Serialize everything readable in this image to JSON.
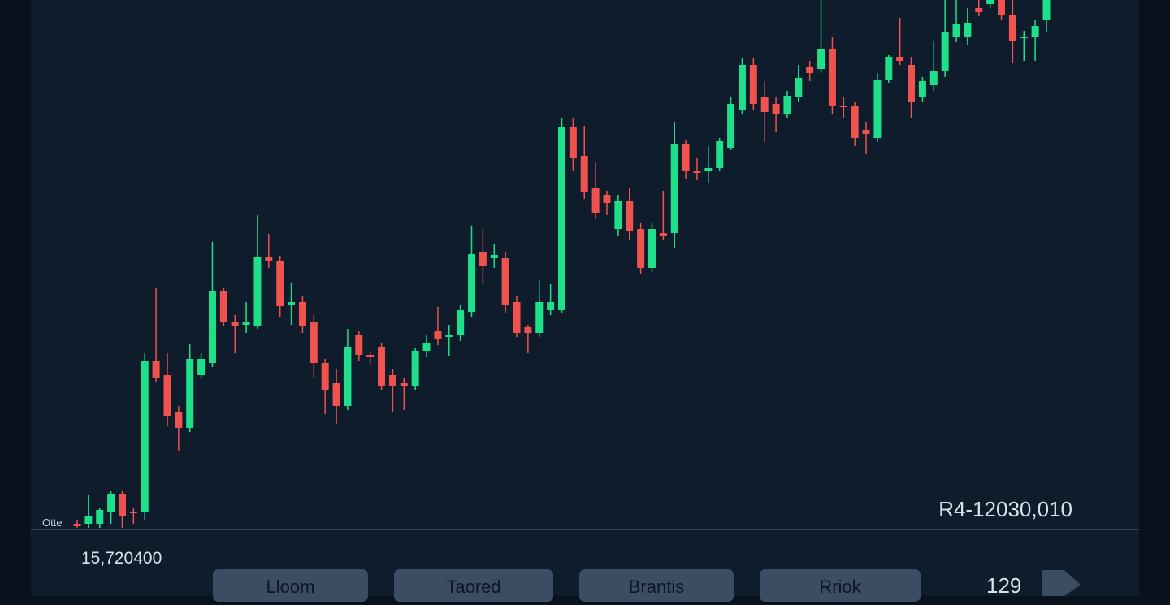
{
  "chart_data": {
    "type": "candlestick",
    "ylim": [
      0,
      650
    ],
    "up_color": "#1fe08a",
    "down_color": "#f0524e",
    "candles": [
      {
        "o": 5,
        "h": 10,
        "l": 0,
        "c": 2
      },
      {
        "o": 5,
        "h": 40,
        "l": 0,
        "c": 15
      },
      {
        "o": 5,
        "h": 25,
        "l": 0,
        "c": 22
      },
      {
        "o": 20,
        "h": 45,
        "l": 5,
        "c": 42
      },
      {
        "o": 42,
        "h": 45,
        "l": 0,
        "c": 15
      },
      {
        "o": 20,
        "h": 25,
        "l": 5,
        "c": 18
      },
      {
        "o": 20,
        "h": 215,
        "l": 10,
        "c": 205
      },
      {
        "o": 205,
        "h": 295,
        "l": 180,
        "c": 185
      },
      {
        "o": 188,
        "h": 215,
        "l": 125,
        "c": 138
      },
      {
        "o": 143,
        "h": 150,
        "l": 95,
        "c": 123
      },
      {
        "o": 123,
        "h": 226,
        "l": 118,
        "c": 208
      },
      {
        "o": 188,
        "h": 215,
        "l": 185,
        "c": 208
      },
      {
        "o": 203,
        "h": 352,
        "l": 198,
        "c": 292
      },
      {
        "o": 292,
        "h": 295,
        "l": 248,
        "c": 253
      },
      {
        "o": 253,
        "h": 262,
        "l": 215,
        "c": 248
      },
      {
        "o": 250,
        "h": 278,
        "l": 240,
        "c": 253
      },
      {
        "o": 248,
        "h": 385,
        "l": 245,
        "c": 334
      },
      {
        "o": 334,
        "h": 362,
        "l": 320,
        "c": 329
      },
      {
        "o": 329,
        "h": 335,
        "l": 260,
        "c": 273
      },
      {
        "o": 275,
        "h": 302,
        "l": 250,
        "c": 278
      },
      {
        "o": 278,
        "h": 285,
        "l": 240,
        "c": 248
      },
      {
        "o": 253,
        "h": 262,
        "l": 185,
        "c": 203
      },
      {
        "o": 203,
        "h": 208,
        "l": 140,
        "c": 170
      },
      {
        "o": 178,
        "h": 195,
        "l": 128,
        "c": 150
      },
      {
        "o": 150,
        "h": 245,
        "l": 145,
        "c": 223
      },
      {
        "o": 237,
        "h": 243,
        "l": 205,
        "c": 213
      },
      {
        "o": 213,
        "h": 218,
        "l": 200,
        "c": 210
      },
      {
        "o": 223,
        "h": 228,
        "l": 170,
        "c": 175
      },
      {
        "o": 188,
        "h": 195,
        "l": 143,
        "c": 175
      },
      {
        "o": 178,
        "h": 185,
        "l": 145,
        "c": 175
      },
      {
        "o": 175,
        "h": 222,
        "l": 170,
        "c": 218
      },
      {
        "o": 218,
        "h": 238,
        "l": 210,
        "c": 228
      },
      {
        "o": 242,
        "h": 272,
        "l": 225,
        "c": 232
      },
      {
        "o": 235,
        "h": 250,
        "l": 212,
        "c": 237
      },
      {
        "o": 237,
        "h": 275,
        "l": 230,
        "c": 268
      },
      {
        "o": 266,
        "h": 372,
        "l": 260,
        "c": 337
      },
      {
        "o": 340,
        "h": 368,
        "l": 300,
        "c": 322
      },
      {
        "o": 332,
        "h": 350,
        "l": 320,
        "c": 336
      },
      {
        "o": 332,
        "h": 340,
        "l": 265,
        "c": 275
      },
      {
        "o": 278,
        "h": 285,
        "l": 235,
        "c": 240
      },
      {
        "o": 247,
        "h": 250,
        "l": 215,
        "c": 240
      },
      {
        "o": 240,
        "h": 305,
        "l": 235,
        "c": 278
      },
      {
        "o": 268,
        "h": 300,
        "l": 262,
        "c": 278
      },
      {
        "o": 268,
        "h": 505,
        "l": 265,
        "c": 493
      },
      {
        "o": 493,
        "h": 505,
        "l": 440,
        "c": 455
      },
      {
        "o": 458,
        "h": 495,
        "l": 405,
        "c": 413
      },
      {
        "o": 418,
        "h": 450,
        "l": 380,
        "c": 388
      },
      {
        "o": 410,
        "h": 415,
        "l": 385,
        "c": 400
      },
      {
        "o": 368,
        "h": 410,
        "l": 360,
        "c": 403
      },
      {
        "o": 403,
        "h": 418,
        "l": 355,
        "c": 365
      },
      {
        "o": 368,
        "h": 375,
        "l": 312,
        "c": 320
      },
      {
        "o": 320,
        "h": 375,
        "l": 315,
        "c": 368
      },
      {
        "o": 363,
        "h": 415,
        "l": 355,
        "c": 360
      },
      {
        "o": 363,
        "h": 500,
        "l": 345,
        "c": 473
      },
      {
        "o": 473,
        "h": 478,
        "l": 430,
        "c": 440
      },
      {
        "o": 440,
        "h": 455,
        "l": 428,
        "c": 437
      },
      {
        "o": 440,
        "h": 470,
        "l": 425,
        "c": 443
      },
      {
        "o": 443,
        "h": 480,
        "l": 440,
        "c": 476
      },
      {
        "o": 468,
        "h": 530,
        "l": 465,
        "c": 522
      },
      {
        "o": 515,
        "h": 578,
        "l": 510,
        "c": 570
      },
      {
        "o": 570,
        "h": 578,
        "l": 515,
        "c": 522
      },
      {
        "o": 530,
        "h": 550,
        "l": 475,
        "c": 512
      },
      {
        "o": 522,
        "h": 530,
        "l": 488,
        "c": 510
      },
      {
        "o": 510,
        "h": 538,
        "l": 505,
        "c": 532
      },
      {
        "o": 530,
        "h": 570,
        "l": 525,
        "c": 554
      },
      {
        "o": 567,
        "h": 575,
        "l": 550,
        "c": 560
      },
      {
        "o": 565,
        "h": 650,
        "l": 560,
        "c": 590
      },
      {
        "o": 590,
        "h": 605,
        "l": 510,
        "c": 520
      },
      {
        "o": 520,
        "h": 530,
        "l": 505,
        "c": 518
      },
      {
        "o": 520,
        "h": 525,
        "l": 470,
        "c": 480
      },
      {
        "o": 490,
        "h": 500,
        "l": 460,
        "c": 485
      },
      {
        "o": 480,
        "h": 560,
        "l": 475,
        "c": 552
      },
      {
        "o": 552,
        "h": 582,
        "l": 548,
        "c": 580
      },
      {
        "o": 580,
        "h": 628,
        "l": 570,
        "c": 575
      },
      {
        "o": 570,
        "h": 580,
        "l": 505,
        "c": 525
      },
      {
        "o": 530,
        "h": 555,
        "l": 525,
        "c": 550
      },
      {
        "o": 545,
        "h": 600,
        "l": 538,
        "c": 562
      },
      {
        "o": 562,
        "h": 650,
        "l": 555,
        "c": 610
      },
      {
        "o": 605,
        "h": 650,
        "l": 598,
        "c": 620
      },
      {
        "o": 605,
        "h": 640,
        "l": 595,
        "c": 622
      },
      {
        "o": 640,
        "h": 650,
        "l": 630,
        "c": 635
      },
      {
        "o": 645,
        "h": 650,
        "l": 640,
        "c": 650
      },
      {
        "o": 650,
        "h": 650,
        "l": 625,
        "c": 632
      },
      {
        "o": 632,
        "h": 650,
        "l": 572,
        "c": 600
      },
      {
        "o": 605,
        "h": 612,
        "l": 575,
        "c": 605
      },
      {
        "o": 605,
        "h": 625,
        "l": 575,
        "c": 618
      },
      {
        "o": 625,
        "h": 650,
        "l": 610,
        "c": 650
      }
    ]
  },
  "series_label": "Otte",
  "price_label": "R4-12030,010",
  "volume_label": "15,720400",
  "buttons": [
    "Lloom",
    "Taored",
    "Brantis",
    "Rriok"
  ],
  "page_number": "129"
}
